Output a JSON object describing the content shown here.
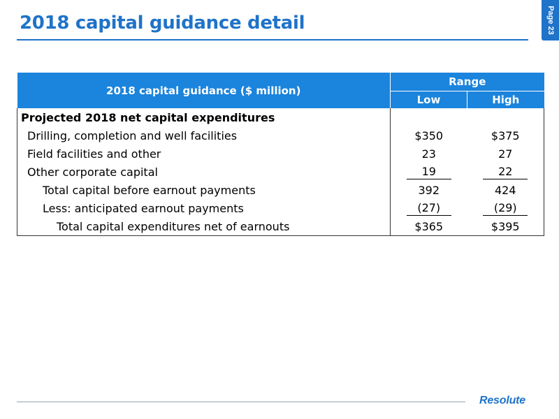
{
  "slide": {
    "title": "2018 capital guidance detail",
    "page_label": "Page 23",
    "logo_text": "Resolute"
  },
  "table": {
    "header": {
      "label": "2018 capital guidance ($ million)",
      "range": "Range",
      "low": "Low",
      "high": "High"
    },
    "rows": [
      {
        "label": "Projected 2018 net capital expenditures",
        "low": "",
        "high": ""
      },
      {
        "label": "Drilling, completion and well facilities",
        "low": "$350",
        "high": "$375"
      },
      {
        "label": "Field facilities and other",
        "low": "23",
        "high": "27"
      },
      {
        "label": "Other corporate capital",
        "low": "19",
        "high": "22"
      },
      {
        "label": "Total capital before earnout payments",
        "low": "392",
        "high": "424"
      },
      {
        "label": "Less: anticipated earnout payments",
        "low": "(27)",
        "high": "(29)"
      },
      {
        "label": "Total capital expenditures net of earnouts",
        "low": "$365",
        "high": "$395"
      }
    ]
  },
  "colors": {
    "accent": "#1f73c9",
    "header_fill": "#1b84dc"
  }
}
